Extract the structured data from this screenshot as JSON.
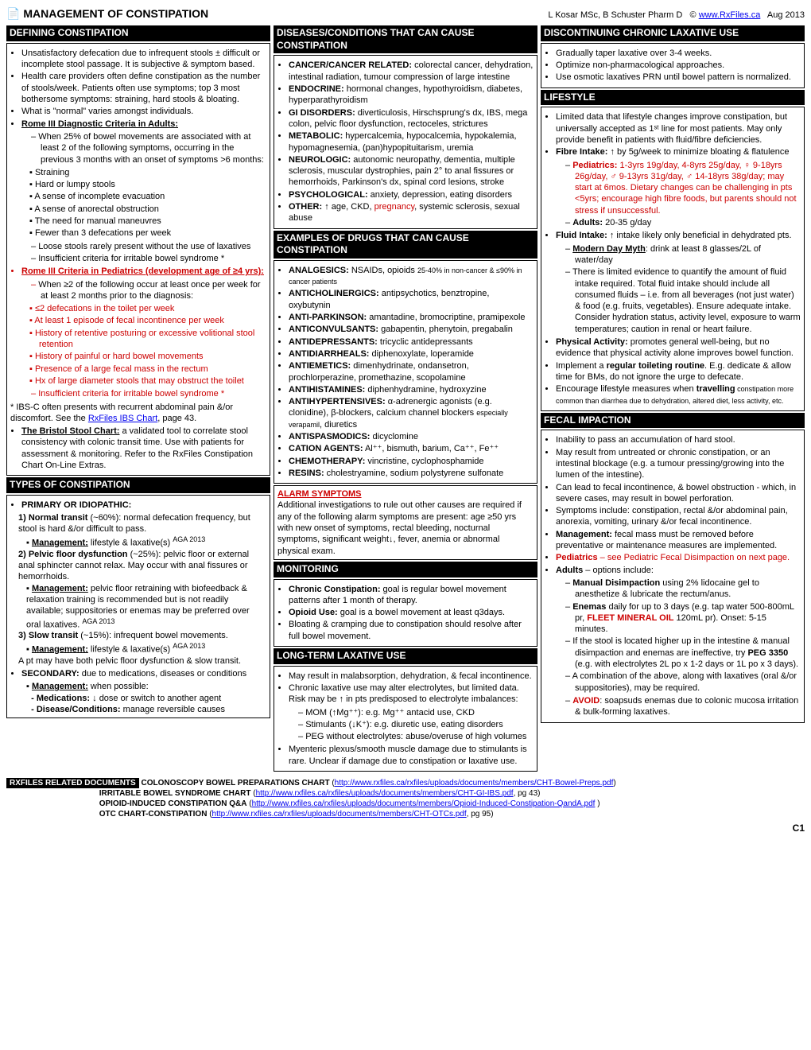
{
  "header": {
    "title": "MANAGEMENT OF CONSTIPATION",
    "author": "L Kosar MSc, B Schuster Pharm D",
    "link": "www.RxFiles.ca",
    "date": "Aug 2013"
  },
  "col1": {
    "defining_h": "DEFINING CONSTIPATION",
    "defining": [
      "Unsatisfactory defecation due to infrequent stools ± difficult or incomplete stool passage. It is subjective & symptom based.",
      "Health care providers often define constipation as the number of stools/week. Patients often use symptoms; top 3 most bothersome symptoms: straining, hard stools & bloating.",
      "What is \"normal\" varies amongst individuals."
    ],
    "rome_adult_h": "Rome III Diagnostic Criteria in Adults:",
    "rome_adult_intro": "When 25% of bowel movements are associated with at least 2 of the following symptoms, occurring in the previous 3 months with an onset of symptoms >6 months:",
    "rome_adult_sx": [
      "Straining",
      "Hard or lumpy stools",
      "A sense of incomplete evacuation",
      "A sense of anorectal obstruction",
      "The need for manual maneuvres",
      "Fewer than 3 defecations per week"
    ],
    "rome_adult_post": [
      "Loose stools rarely present without the use of laxatives",
      "Insufficient criteria for irritable bowel syndrome *"
    ],
    "rome_ped_h": "Rome III Criteria in Pediatrics (development age of ≥4 yrs):",
    "rome_ped_intro": "When ≥2 of the following occur at least once per week for at least 2 months prior to the diagnosis:",
    "rome_ped_sx": [
      "≤2 defecations in the toilet per week",
      "At least 1 episode of fecal incontinence per week",
      "History of retentive posturing or excessive volitional stool retention",
      "History of painful or hard bowel movements",
      "Presence of a large fecal mass in the rectum",
      "Hx of large diameter stools that may obstruct the toilet"
    ],
    "rome_ped_post": "Insufficient criteria for irritable bowel syndrome *",
    "ibs_note": "* IBS-C often presents with recurrent abdominal pain &/or discomfort. See the ",
    "ibs_link": "RxFiles IBS Chart",
    "ibs_note2": ", page 43.",
    "bristol_h": "The Bristol Stool Chart:",
    "bristol": " a validated tool to correlate stool consistency with colonic transit time. Use with patients for assessment & monitoring. Refer to the RxFiles Constipation Chart On-Line Extras.",
    "types_h": "TYPES OF CONSTIPATION",
    "primary_h": "PRIMARY OR IDIOPATHIC:",
    "p1_h": "1) Normal transit",
    "p1": " (~60%): normal defecation frequency, but stool is hard &/or difficult to pass.",
    "p1_mgmt": " lifestyle & laxative(s)",
    "p2_h": "2) Pelvic floor dysfunction",
    "p2": " (~25%): pelvic floor or external anal sphincter cannot relax. May occur with anal fissures or hemorrhoids.",
    "p2_mgmt": " pelvic floor retraining with biofeedback & relaxation training is recommended but is not readily available; suppositories or enemas may be preferred over oral laxatives.",
    "p3_h": "3) Slow transit",
    "p3": " (~15%): infrequent bowel movements.",
    "p3_mgmt": " lifestyle & laxative(s)",
    "p_note": "A pt may have both pelvic floor dysfunction & slow transit.",
    "secondary_h": "SECONDARY:",
    "secondary": " due to medications, diseases or conditions",
    "sec_mgmt": " when possible:",
    "sec_med": " ↓ dose or switch to another agent",
    "sec_dis": " manage reversible causes"
  },
  "col2": {
    "diseases_h": "DISEASES/CONDITIONS THAT CAN CAUSE CONSTIPATION",
    "diseases": [
      {
        "h": "CANCER/CANCER RELATED:",
        "t": " colorectal cancer, dehydration, intestinal radiation, tumour compression of large intestine"
      },
      {
        "h": "ENDOCRINE:",
        "t": " hormonal changes, hypothyroidism, diabetes, hyperparathyroidism"
      },
      {
        "h": "GI DISORDERS:",
        "t": " diverticulosis, Hirschsprung's dx, IBS, mega colon, pelvic floor dysfunction, rectoceles, strictures"
      },
      {
        "h": "METABOLIC:",
        "t": " hypercalcemia, hypocalcemia, hypokalemia, hypomagnesemia, (pan)hypopituitarism, uremia"
      },
      {
        "h": "NEUROLOGIC:",
        "t": " autonomic neuropathy, dementia, multiple sclerosis, muscular dystrophies, pain 2° to anal fissures or hemorrhoids, Parkinson's dx, spinal cord lesions, stroke"
      },
      {
        "h": "PSYCHOLOGICAL:",
        "t": " anxiety, depression, eating disorders"
      },
      {
        "h": "OTHER:",
        "t": " ↑ age, CKD, ",
        "r": "pregnancy",
        "t2": ", systemic sclerosis, sexual abuse"
      }
    ],
    "drugs_h": "EXAMPLES OF DRUGS THAT CAN CAUSE CONSTIPATION",
    "drugs": [
      {
        "h": "ANALGESICS:",
        "t": " NSAIDs, opioids ",
        "sm": "25-40% in non-cancer & ≤90% in cancer patients"
      },
      {
        "h": "ANTICHOLINERGICS:",
        "t": " antipsychotics, benztropine, oxybutynin"
      },
      {
        "h": "ANTI-PARKINSON:",
        "t": " amantadine, bromocriptine, pramipexole"
      },
      {
        "h": "ANTICONVULSANTS:",
        "t": " gabapentin, phenytoin, pregabalin"
      },
      {
        "h": "ANTIDEPRESSANTS:",
        "t": " tricyclic antidepressants"
      },
      {
        "h": "ANTIDIARRHEALS:",
        "t": " diphenoxylate, loperamide"
      },
      {
        "h": "ANTIEMETICS:",
        "t": " dimenhydrinate, ondansetron, prochlorperazine, promethazine, scopolamine"
      },
      {
        "h": "ANTIHISTAMINES:",
        "t": " diphenhydramine, hydroxyzine"
      },
      {
        "h": "ANTIHYPERTENSIVES:",
        "t": " α-adrenergic agonists (e.g. clonidine), β-blockers, calcium channel blockers ",
        "sm": "especially verapamil",
        "t2": ", diuretics"
      },
      {
        "h": "ANTISPASMODICS:",
        "t": " dicyclomine"
      },
      {
        "h": "CATION AGENTS:",
        "t": " Al⁺⁺, bismuth, barium, Ca⁺⁺, Fe⁺⁺"
      },
      {
        "h": "CHEMOTHERAPY:",
        "t": " vincristine, cyclophosphamide"
      },
      {
        "h": "RESINS:",
        "t": " cholestryamine, sodium polystyrene sulfonate"
      }
    ],
    "alarm_h": "ALARM SYMPTOMS",
    "alarm": "Additional investigations to rule out other causes are required if any of the following alarm symptoms are present: age ≥50 yrs with new onset of symptoms, rectal bleeding, nocturnal symptoms, significant weight↓, fever, anemia or abnormal physical exam.",
    "monitor_h": "MONITORING",
    "monitor": [
      {
        "h": "Chronic Constipation:",
        "t": " goal is regular bowel movement patterns after 1 month of therapy."
      },
      {
        "h": "Opioid Use:",
        "t": " goal is a bowel movement at least q3days."
      },
      {
        "h": "",
        "t": "Bloating & cramping due to constipation should resolve after full bowel movement."
      }
    ],
    "longterm_h": "LONG-TERM LAXATIVE USE",
    "lt1": "May result in malabsorption, dehydration, & fecal incontinence.",
    "lt2": "Chronic laxative use may alter electrolytes, but limited data. Risk may be ↑ in pts predisposed to electrolyte imbalances:",
    "lt_list": [
      "MOM (↑Mg⁺⁺): e.g. Mg⁺⁺ antacid use, CKD",
      "Stimulants (↓K⁺): e.g. diuretic use, eating disorders",
      "PEG without electrolytes: abuse/overuse of high volumes"
    ],
    "lt3": "Myenteric plexus/smooth muscle damage due to stimulants is rare. Unclear if damage due to constipation or laxative use."
  },
  "col3": {
    "disc_h": "DISCONTINUING CHRONIC LAXATIVE USE",
    "disc": [
      "Gradually taper laxative over 3-4 weeks.",
      "Optimize non-pharmacological approaches.",
      "Use osmotic laxatives PRN until bowel pattern is normalized."
    ],
    "life_h": "LIFESTYLE",
    "life1": "Limited data that lifestyle changes improve constipation, but universally accepted as 1ˢᵗ line for most patients. May only provide benefit in patients with fluid/fibre deficiencies.",
    "fibre_h": "Fibre Intake:",
    "fibre": " ↑ by 5g/week to minimize bloating & flatulence",
    "ped_h": "Pediatrics:",
    "ped": " 1-3yrs 19g/day, 4-8yrs 25g/day, ♀ 9-18yrs 26g/day, ♂ 9-13yrs 31g/day, ♂ 14-18yrs 38g/day; may start at 6mos. Dietary changes can be challenging in pts <5yrs; encourage high fibre foods, but parents should not stress if unsuccessful.",
    "adults_h": "Adults:",
    "adults": " 20-35 g/day",
    "fluid_h": "Fluid Intake:",
    "fluid": " ↑ intake likely only beneficial in dehydrated pts.",
    "myth_h": "Modern Day Myth",
    "myth": ": drink at least 8 glasses/2L of water/day",
    "fluid2": "There is limited evidence to quantify the amount of fluid intake required. Total fluid intake should include all consumed fluids – i.e. from all beverages (not just water) & food (e.g. fruits, vegetables). Ensure adequate intake. Consider hydration status, activity level, exposure to warm temperatures; caution in renal or heart failure.",
    "pa_h": "Physical Activity:",
    "pa": " promotes general well-being, but no evidence that physical activity alone improves bowel function.",
    "toilet": "Implement a ",
    "toilet_b": "regular toileting routine",
    "toilet2": ". E.g. dedicate & allow time for BMs, do not ignore the urge to defecate.",
    "travel": "Encourage lifestyle measures when ",
    "travel_b": "travelling",
    "travel2": " constipation more common than diarrhea due to dehydration, altered diet, less activity, etc.",
    "fecal_h": "FECAL IMPACTION",
    "fecal": [
      "Inability to pass an accumulation of hard stool.",
      "May result from untreated or chronic constipation, or an intestinal blockage (e.g. a tumour pressing/growing into the lumen of the intestine).",
      "Can lead to fecal incontinence, & bowel obstruction - which, in severe cases, may result in bowel perforation.",
      "Symptoms include: constipation, rectal &/or abdominal pain, anorexia, vomiting, urinary &/or fecal incontinence."
    ],
    "mgmt_h": "Management:",
    "mgmt": " fecal mass must be removed before preventative or maintenance measures are implemented.",
    "ped2_h": "Pediatrics",
    "ped2": " – see Pediatric Fecal Disimpaction on next page.",
    "ad_h": "Adults",
    "ad": " – options include:",
    "ad_list": [
      {
        "b": "Manual Disimpaction",
        "t": " using 2% lidocaine gel to anesthetize & lubricate the rectum/anus."
      },
      {
        "b": "Enemas",
        "t": " daily for up to 3 days (e.g. tap water 500-800mL pr, ",
        "r": "FLEET MINERAL OIL",
        "t2": " 120mL pr). Onset: 5-15 minutes."
      },
      {
        "b": "",
        "t": "If the stool is located higher up in the intestine & manual disimpaction and enemas are ineffective, try ",
        "bb": "PEG 3350",
        "t2": " (e.g. with electrolytes 2L po x 1-2 days or 1L po x 3 days)."
      },
      {
        "b": "",
        "t": "A combination of the above, along with laxatives (oral &/or suppositories), may be required."
      }
    ],
    "avoid_h": "AVOID",
    "avoid": ": soapsuds enemas due to colonic mucosa irritation & bulk-forming laxatives."
  },
  "footer": {
    "lbl": "RXFILES RELATED DOCUMENTS",
    "docs": [
      {
        "n": "COLONOSCOPY BOWEL PREPARATIONS CHART",
        "u": "http://www.rxfiles.ca/rxfiles/uploads/documents/members/CHT-Bowel-Preps.pdf",
        "s": ""
      },
      {
        "n": "IRRITABLE BOWEL SYNDROME CHART",
        "u": "http://www.rxfiles.ca/rxfiles/uploads/documents/members/CHT-GI-IBS.pdf",
        "s": ", pg 43)"
      },
      {
        "n": "OPIOID-INDUCED CONSTIPATION Q&A",
        "u": "http://www.rxfiles.ca/rxfiles/uploads/documents/members/Opioid-Induced-Constipation-QandA.pdf",
        "s": " )"
      },
      {
        "n": "OTC CHART-CONSTIPATION",
        "u": "http://www.rxfiles.ca/rxfiles/uploads/documents/members/CHT-OTCs.pdf",
        "s": ", pg 95)"
      }
    ],
    "pg": "C1"
  }
}
